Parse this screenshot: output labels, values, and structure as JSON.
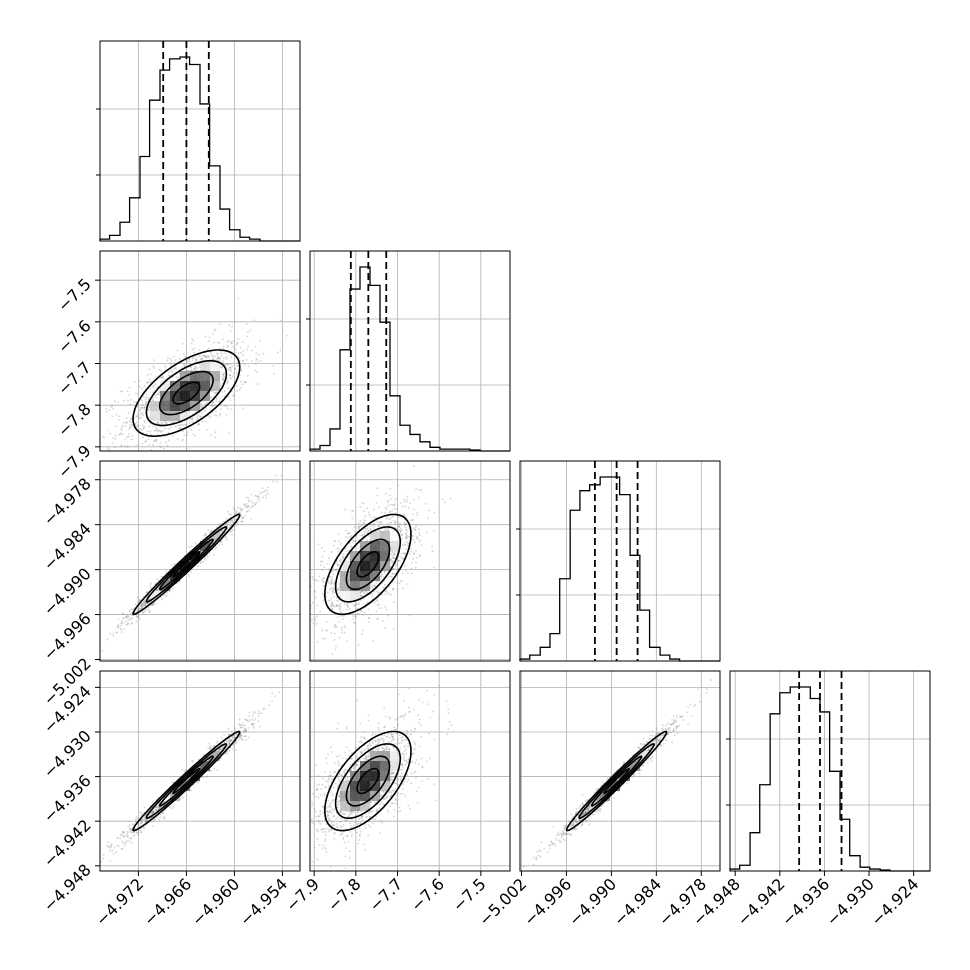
{
  "chart_data": {
    "type": "corner",
    "parameters": [
      {
        "range": [
          -4.9768,
          -4.9518
        ],
        "ticks": [
          "−4.972",
          "−4.966",
          "−4.960",
          "−4.954"
        ],
        "tick_values": [
          -4.972,
          -4.966,
          -4.96,
          -4.954
        ],
        "mean": -4.966,
        "std": 0.0029
      },
      {
        "range": [
          -7.91,
          -7.43
        ],
        "ticks": [
          "−7.9",
          "−7.8",
          "−7.7",
          "−7.6",
          "−7.5"
        ],
        "tick_values": [
          -7.9,
          -7.8,
          -7.7,
          -7.6,
          -7.5
        ],
        "mean": -7.771,
        "std": 0.045
      },
      {
        "range": [
          -5.0022,
          -4.9755
        ],
        "ticks": [
          "−5.002",
          "−4.996",
          "−4.990",
          "−4.984",
          "−4.978"
        ],
        "tick_values": [
          -5.002,
          -4.996,
          -4.99,
          -4.984,
          -4.978
        ],
        "mean": -4.9893,
        "std": 0.0029
      },
      {
        "range": [
          -4.9487,
          -4.9218
        ],
        "ticks": [
          "−4.948",
          "−4.942",
          "−4.936",
          "−4.930",
          "−4.924"
        ],
        "tick_values": [
          -4.948,
          -4.942,
          -4.936,
          -4.93,
          -4.924
        ],
        "mean": -4.9366,
        "std": 0.0029
      }
    ],
    "histograms": [
      {
        "param": 0,
        "bins": [
          -4.9768,
          -4.9756,
          -4.9743,
          -4.9731,
          -4.9718,
          -4.9706,
          -4.9693,
          -4.9681,
          -4.9668,
          -4.9656,
          -4.9643,
          -4.9631,
          -4.9618,
          -4.9606,
          -4.9593,
          -4.9581,
          -4.9568,
          -4.9556,
          -4.9543,
          -4.9531,
          -4.9518
        ],
        "counts": [
          0.01,
          0.03,
          0.1,
          0.23,
          0.45,
          0.75,
          0.91,
          0.97,
          0.98,
          0.94,
          0.73,
          0.4,
          0.17,
          0.06,
          0.02,
          0.01,
          0,
          0,
          0,
          0
        ]
      },
      {
        "param": 1,
        "bins": [
          -7.91,
          -7.886,
          -7.862,
          -7.838,
          -7.814,
          -7.79,
          -7.766,
          -7.742,
          -7.718,
          -7.694,
          -7.67,
          -7.646,
          -7.622,
          -7.598,
          -7.574,
          -7.55,
          -7.526,
          -7.502,
          -7.478,
          -7.454,
          -7.43
        ],
        "counts": [
          0.01,
          0.03,
          0.12,
          0.55,
          0.88,
          1.0,
          0.9,
          0.7,
          0.3,
          0.14,
          0.09,
          0.05,
          0.02,
          0.01,
          0.01,
          0.01,
          0.005,
          0,
          0,
          0
        ]
      },
      {
        "param": 2,
        "bins": [
          -5.0022,
          -5.0009,
          -4.9995,
          -4.9982,
          -4.9969,
          -4.9955,
          -4.9942,
          -4.9929,
          -4.9915,
          -4.9902,
          -4.9889,
          -4.9875,
          -4.9862,
          -4.9849,
          -4.9835,
          -4.9822,
          -4.9809,
          -4.9795,
          -4.9782,
          -4.9769,
          -4.9755
        ],
        "counts": [
          0.01,
          0.03,
          0.07,
          0.14,
          0.42,
          0.77,
          0.87,
          0.9,
          0.94,
          0.94,
          0.85,
          0.54,
          0.26,
          0.07,
          0.03,
          0.01,
          0,
          0,
          0,
          0
        ]
      },
      {
        "param": 3,
        "bins": [
          -4.9487,
          -4.9474,
          -4.946,
          -4.9447,
          -4.9433,
          -4.942,
          -4.9406,
          -4.9393,
          -4.9379,
          -4.9366,
          -4.9353,
          -4.9339,
          -4.9326,
          -4.9312,
          -4.9299,
          -4.9285,
          -4.9272,
          -4.9258,
          -4.9245,
          -4.9231,
          -4.9218
        ],
        "counts": [
          0.01,
          0.03,
          0.2,
          0.45,
          0.82,
          0.93,
          0.96,
          0.96,
          0.9,
          0.83,
          0.52,
          0.27,
          0.08,
          0.02,
          0.01,
          0.005,
          0,
          0,
          0,
          0
        ]
      }
    ],
    "quantile_lines": [
      {
        "param": 0,
        "values": [
          -4.9689,
          -4.966,
          -4.9632
        ]
      },
      {
        "param": 1,
        "values": [
          -7.812,
          -7.77,
          -7.727
        ]
      },
      {
        "param": 2,
        "values": [
          -4.9922,
          -4.9893,
          -4.9865
        ]
      },
      {
        "param": 3,
        "values": [
          -4.9394,
          -4.9366,
          -4.9337
        ]
      }
    ],
    "correlations": [
      {
        "pair": [
          1,
          0
        ],
        "rho": 0.6
      },
      {
        "pair": [
          2,
          0
        ],
        "rho": 0.985
      },
      {
        "pair": [
          2,
          1
        ],
        "rho": 0.6
      },
      {
        "pair": [
          3,
          0
        ],
        "rho": 0.985
      },
      {
        "pair": [
          3,
          1
        ],
        "rho": 0.6
      },
      {
        "pair": [
          3,
          2
        ],
        "rho": 0.985
      }
    ],
    "contour_levels_sigma": [
      0.5,
      1.0,
      1.5,
      2.0
    ],
    "grid": true,
    "colors": {
      "line": "#000000",
      "grid": "#b0b0b0",
      "points": "#888888"
    }
  }
}
